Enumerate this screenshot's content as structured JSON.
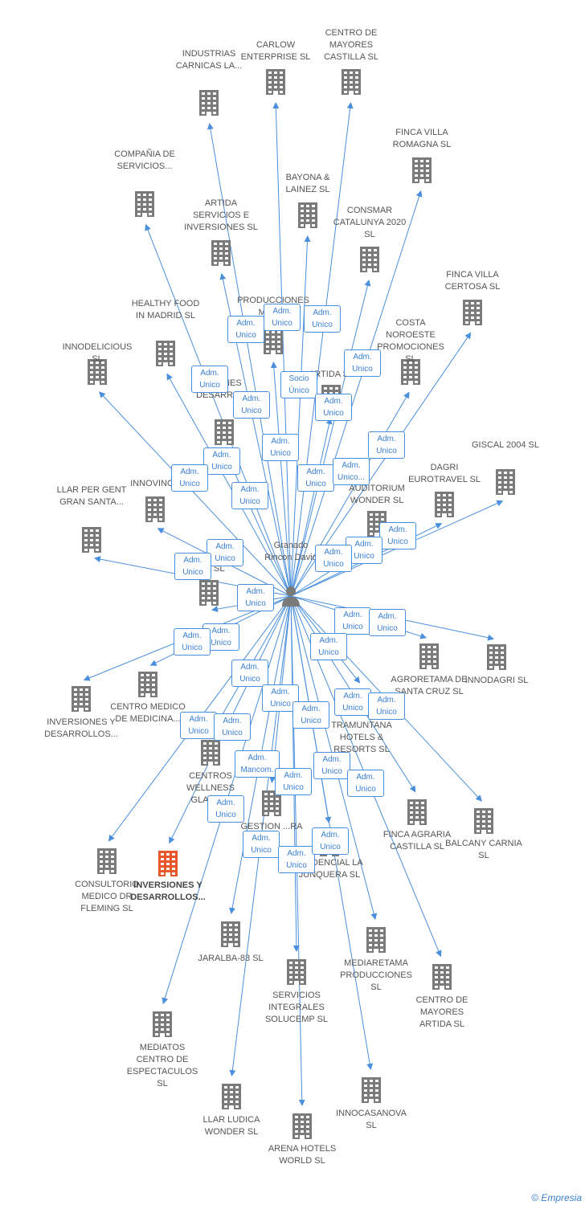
{
  "center": {
    "name": "Granado Rincon David"
  },
  "nodes": [
    {
      "label": "INDUSTRIAS CARNICAS LA..."
    },
    {
      "label": "CARLOW ENTERPRISE SL"
    },
    {
      "label": "CENTRO DE MAYORES CASTILLA SL"
    },
    {
      "label": "FINCA VILLA ROMAGNA SL"
    },
    {
      "label": "COMPAÑIA DE SERVICIOS..."
    },
    {
      "label": "BAYONA & LAINEZ SL"
    },
    {
      "label": "ARTIDA SERVICIOS E INVERSIONES SL"
    },
    {
      "label": "CONSMAR CATALUNYA 2020 SL"
    },
    {
      "label": "FINCA VILLA CERTOSA SL"
    },
    {
      "label": "HEALTHY FOOD IN MADRID SL"
    },
    {
      "label": "PRODUCCIONES MEDI..."
    },
    {
      "label": "INNODELICIOUS SL"
    },
    {
      "label": "COSTA NOROESTE PROMOCIONES SL"
    },
    {
      "label": "ARTIDA SL"
    },
    {
      "label": "...IONES DESARROL..."
    },
    {
      "label": "GISCAL 2004 SL"
    },
    {
      "label": "DAGRI EUROTRAVEL SL"
    },
    {
      "label": "INNOVINOS"
    },
    {
      "label": "AUDITORIUM WONDER SL"
    },
    {
      "label": "LLAR PER GENT GRAN SANTA..."
    },
    {
      "label": "...VA SL"
    },
    {
      "label": "AGRORETAMA DE SANTA CRUZ SL"
    },
    {
      "label": "INNODAGRI SL"
    },
    {
      "label": "CENTRO MEDICO DE MEDICINA..."
    },
    {
      "label": "INVERSIONES Y DESARROLLOS..."
    },
    {
      "label": "TRAMUNTANA HOTELS & RESORTS SL"
    },
    {
      "label": "CENTROS WELLNESS GLAMO..."
    },
    {
      "label": "GESTION ...RA"
    },
    {
      "label": "FINCA AGRARIA CASTILLA SL"
    },
    {
      "label": "BALCANY CARNIA SL"
    },
    {
      "label": "CONSULTORIO MEDICO DR FLEMING SL"
    },
    {
      "label": "INVERSIONES Y DESARROLLOS..."
    },
    {
      "label": "...SIDENCIAL LA JUNQUERA SL"
    },
    {
      "label": "JARALBA-83 SL"
    },
    {
      "label": "MEDIARETAMA PRODUCCIONES SL"
    },
    {
      "label": "SERVICIOS INTEGRALES SOLUCEMP SL"
    },
    {
      "label": "CENTRO DE MAYORES ARTIDA SL"
    },
    {
      "label": "MEDIATOS CENTRO DE ESPECTACULOS SL"
    },
    {
      "label": "LLAR LUDICA WONDER SL"
    },
    {
      "label": "INNOCASANOVA SL"
    },
    {
      "label": "ARENA HOTELS WORLD SL"
    }
  ],
  "relations": [
    "Adm. Unico",
    "Adm. Unico",
    "Adm. Unico",
    "Adm. Unico",
    "Socio Único",
    "Adm. Unico",
    "Adm. Unico",
    "Adm. Unico",
    "Adm. Unico",
    "Adm. Unico",
    "Adm. Unico",
    "Adm. Unico...",
    "Adm. Unico",
    "Adm. Unico",
    "Adm. Unico",
    "Adm. Unico",
    "Adm. Unico",
    "Adm. Unico",
    "Adm. Unico",
    "Adm. Unico",
    "Adm. Unico",
    "Adm. Unico",
    "Adm. Unico",
    "Adm. Unico",
    "Adm. Unico",
    "Adm. Unico",
    "Adm. Unico",
    "Adm. Unico",
    "Adm. Unico",
    "Adm. Unico",
    "Adm. Unico",
    "Adm. Unico",
    "Adm. Unico",
    "Adm. Mancom.",
    "Adm. Unico",
    "Adm. Unico",
    "Adm. Unico",
    "Adm. Unico",
    "Adm. Unico",
    "Adm. Unico",
    "Adm. Unico"
  ],
  "footer": {
    "copyright": "©",
    "brand": "Empresia"
  }
}
